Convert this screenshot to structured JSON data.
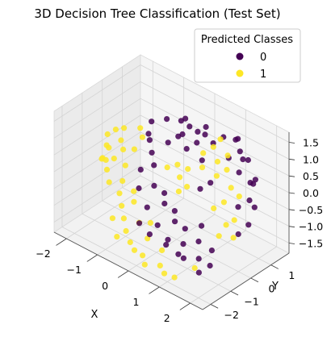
{
  "chart_data": {
    "type": "scatter",
    "title": "3D Decision Tree Classification (Test Set)",
    "xlabel": "X",
    "ylabel": "Y",
    "zlabel": "",
    "xlim": [
      -2.4,
      2.4
    ],
    "ylim": [
      -2.4,
      1.9
    ],
    "zlim": [
      -1.8,
      1.8
    ],
    "x_ticks": [
      "−2",
      "−1",
      "0",
      "1",
      "2"
    ],
    "y_ticks": [
      "−2",
      "−1",
      "0",
      "1"
    ],
    "z_ticks": [
      "1.5",
      "1.0",
      "0.5",
      "0.0",
      "−0.5",
      "−1.0",
      "−1.5"
    ],
    "grid": true,
    "legend": {
      "title": "Predicted Classes",
      "placement": "top-right",
      "entries": [
        {
          "label": "0",
          "color": "#440154"
        },
        {
          "label": "1",
          "color": "#fde725"
        }
      ]
    },
    "series": [
      {
        "name": "0",
        "color": "#440154",
        "points": [
          [
            -0.3,
            0.9,
            1.3
          ],
          [
            -0.1,
            0.8,
            1.2
          ],
          [
            0.1,
            0.9,
            1.1
          ],
          [
            -0.2,
            0.6,
            1.0
          ],
          [
            0.2,
            0.7,
            0.9
          ],
          [
            0.4,
            0.8,
            1.2
          ],
          [
            -0.4,
            0.7,
            0.8
          ],
          [
            0.0,
            0.5,
            0.7
          ],
          [
            -0.5,
            1.0,
            1.1
          ],
          [
            0.3,
            1.0,
            1.3
          ],
          [
            -0.6,
            0.5,
            0.6
          ],
          [
            0.5,
            0.5,
            0.6
          ],
          [
            1.2,
            1.2,
            1.3
          ],
          [
            1.4,
            1.0,
            1.1
          ],
          [
            1.6,
            1.1,
            0.9
          ],
          [
            1.1,
            0.9,
            0.8
          ],
          [
            1.5,
            0.8,
            0.6
          ],
          [
            1.8,
            0.9,
            0.4
          ],
          [
            1.3,
            1.3,
            0.7
          ],
          [
            1.7,
            1.2,
            0.2
          ],
          [
            1.9,
            0.7,
            0.0
          ],
          [
            1.6,
            0.6,
            -0.3
          ],
          [
            2.0,
            0.5,
            -0.6
          ],
          [
            1.8,
            0.3,
            -0.9
          ],
          [
            -1.0,
            0.2,
            0.6
          ],
          [
            -0.8,
            0.0,
            0.4
          ],
          [
            -0.6,
            -0.2,
            0.2
          ],
          [
            -0.9,
            -0.4,
            0.0
          ],
          [
            -0.4,
            -0.5,
            -0.2
          ],
          [
            -0.2,
            -0.3,
            -0.4
          ],
          [
            0.0,
            -0.6,
            -0.5
          ],
          [
            0.2,
            -0.4,
            -0.7
          ],
          [
            0.4,
            -0.7,
            -0.8
          ],
          [
            0.6,
            -0.5,
            -1.0
          ],
          [
            -0.7,
            -0.8,
            -0.3
          ],
          [
            -0.3,
            -1.0,
            -0.6
          ],
          [
            0.1,
            -1.1,
            -0.9
          ],
          [
            0.5,
            -1.2,
            -1.1
          ],
          [
            0.8,
            -0.9,
            -1.2
          ],
          [
            0.9,
            -1.3,
            -1.3
          ],
          [
            1.1,
            -0.6,
            -1.1
          ],
          [
            1.3,
            -0.9,
            -1.4
          ],
          [
            1.2,
            -1.5,
            -1.2
          ],
          [
            0.7,
            -1.6,
            -1.0
          ],
          [
            0.3,
            -1.8,
            -0.8
          ],
          [
            -0.1,
            -1.7,
            -0.7
          ],
          [
            1.0,
            -0.3,
            -0.8
          ],
          [
            1.4,
            -0.4,
            -1.3
          ],
          [
            1.6,
            -0.8,
            -1.5
          ],
          [
            1.5,
            -1.2,
            -1.6
          ],
          [
            0.9,
            0.3,
            0.2
          ],
          [
            0.7,
            0.1,
            0.0
          ],
          [
            -1.2,
            0.6,
            0.9
          ],
          [
            -1.1,
            0.3,
            0.7
          ],
          [
            -0.9,
            0.9,
            1.0
          ],
          [
            0.6,
            0.9,
            1.0
          ],
          [
            0.8,
            1.1,
            1.2
          ],
          [
            1.0,
            1.4,
            1.1
          ],
          [
            1.9,
            1.0,
            0.5
          ],
          [
            2.0,
            0.8,
            -0.2
          ]
        ]
      },
      {
        "name": "1",
        "color": "#fde725",
        "points": [
          [
            -2.1,
            -0.2,
            0.4
          ],
          [
            -2.0,
            -0.4,
            0.2
          ],
          [
            -1.9,
            -0.1,
            0.6
          ],
          [
            -1.8,
            -0.6,
            0.3
          ],
          [
            -1.7,
            0.0,
            0.7
          ],
          [
            -1.6,
            -0.3,
            0.5
          ],
          [
            -1.5,
            -0.8,
            0.2
          ],
          [
            -1.4,
            -0.5,
            0.4
          ],
          [
            -1.3,
            -0.1,
            0.3
          ],
          [
            -1.9,
            -0.8,
            0.0
          ],
          [
            -1.6,
            -1.0,
            -0.1
          ],
          [
            -1.2,
            -0.7,
            0.1
          ],
          [
            -1.1,
            -1.0,
            -0.2
          ],
          [
            -1.4,
            -1.2,
            -0.3
          ],
          [
            -2.0,
            -0.6,
            -0.1
          ],
          [
            -1.7,
            -0.9,
            0.1
          ],
          [
            -1.0,
            -1.3,
            -0.4
          ],
          [
            -0.8,
            -1.5,
            -0.6
          ],
          [
            -0.6,
            -1.7,
            -0.8
          ],
          [
            -0.4,
            -1.9,
            -1.0
          ],
          [
            -0.2,
            -2.0,
            -1.2
          ],
          [
            0.0,
            -2.1,
            -1.3
          ],
          [
            0.2,
            -2.0,
            -1.4
          ],
          [
            -0.5,
            -2.2,
            -1.1
          ],
          [
            -0.9,
            -1.8,
            -0.9
          ],
          [
            0.4,
            -2.2,
            -1.5
          ],
          [
            0.1,
            -1.6,
            -1.1
          ],
          [
            -0.3,
            -1.4,
            -0.9
          ],
          [
            0.7,
            -1.9,
            -1.5
          ],
          [
            0.9,
            -2.0,
            -1.6
          ],
          [
            0.5,
            -1.5,
            -1.3
          ],
          [
            1.1,
            -1.8,
            -1.7
          ],
          [
            0.6,
            0.4,
            0.9
          ],
          [
            0.8,
            0.6,
            1.1
          ],
          [
            1.0,
            0.5,
            0.8
          ],
          [
            0.7,
            0.2,
            0.6
          ],
          [
            1.2,
            0.7,
            1.0
          ],
          [
            0.9,
            0.8,
            1.3
          ],
          [
            1.1,
            0.3,
            0.5
          ],
          [
            1.3,
            0.5,
            0.7
          ],
          [
            1.5,
            0.4,
            0.3
          ],
          [
            1.7,
            0.5,
            0.1
          ],
          [
            1.4,
            0.2,
            -0.1
          ],
          [
            1.8,
            0.1,
            -0.4
          ],
          [
            1.6,
            0.0,
            -0.6
          ],
          [
            1.9,
            -0.1,
            -0.8
          ],
          [
            1.2,
            0.0,
            -0.3
          ],
          [
            1.5,
            -0.2,
            -0.9
          ],
          [
            -0.1,
            0.2,
            0.3
          ],
          [
            0.1,
            0.0,
            0.1
          ],
          [
            0.3,
            0.1,
            0.4
          ],
          [
            -0.3,
            0.0,
            0.2
          ],
          [
            0.2,
            -0.2,
            -0.2
          ],
          [
            0.4,
            -0.1,
            0.0
          ],
          [
            -1.3,
            0.3,
            0.5
          ],
          [
            -1.5,
            0.5,
            0.6
          ],
          [
            -0.6,
            -1.2,
            -0.5
          ],
          [
            -0.8,
            -0.9,
            -0.4
          ],
          [
            0.0,
            -1.3,
            -0.8
          ],
          [
            1.3,
            -1.1,
            -1.6
          ]
        ]
      }
    ]
  }
}
